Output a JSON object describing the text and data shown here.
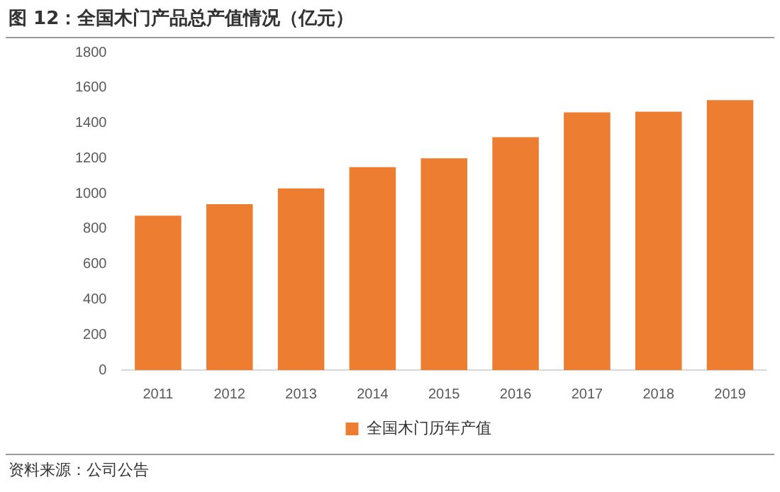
{
  "chart_data": {
    "type": "bar",
    "title": "图 12：全国木门产品总产值情况（亿元）",
    "categories": [
      "2011",
      "2012",
      "2013",
      "2014",
      "2015",
      "2016",
      "2017",
      "2018",
      "2019"
    ],
    "series": [
      {
        "name": "全国木门历年产值",
        "color": "#ed7d31",
        "values": [
          875,
          940,
          1030,
          1150,
          1200,
          1320,
          1460,
          1465,
          1530
        ]
      }
    ],
    "ylim": [
      0,
      1800
    ],
    "yticks": [
      0,
      200,
      400,
      600,
      800,
      1000,
      1200,
      1400,
      1600,
      1800
    ],
    "grid": false,
    "legend": "bottom",
    "annotations": [
      "资料来源：公司公告"
    ]
  }
}
